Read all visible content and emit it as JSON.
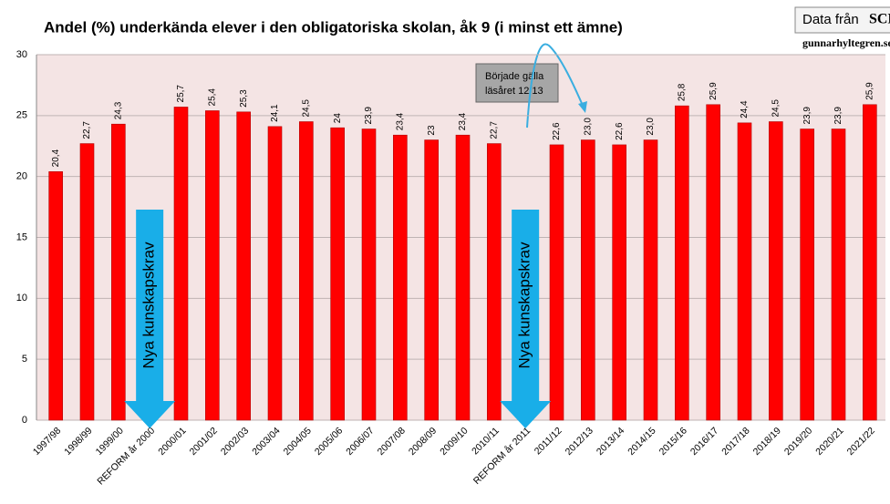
{
  "chart_data": {
    "type": "bar",
    "title": "Andel (%) underkända elever i den obligatoriska skolan, åk 9 (i minst ett ämne)",
    "categories": [
      "1997/98",
      "1998/99",
      "1999/00",
      "REFORM år 2000",
      "2000/01",
      "2001/02",
      "2002/03",
      "2003/04",
      "2004/05",
      "2005/06",
      "2006/07",
      "2007/08",
      "2008/09",
      "2009/10",
      "2010/11",
      "REFORM år 2011",
      "2011/12",
      "2012/13",
      "2013/14",
      "2014/15",
      "2015/16",
      "2016/17",
      "2017/18",
      "2018/19",
      "2019/20",
      "2020/21",
      "2021/22"
    ],
    "values": [
      20.4,
      22.7,
      24.3,
      null,
      25.7,
      25.4,
      25.3,
      24.1,
      24.5,
      24,
      23.9,
      23.4,
      23,
      23.4,
      22.7,
      null,
      22.6,
      23.0,
      22.6,
      23.0,
      25.8,
      25.9,
      24.4,
      24.5,
      23.9,
      23.9,
      25.9
    ],
    "value_labels": [
      "20,4",
      "22,7",
      "24,3",
      null,
      "25,7",
      "25,4",
      "25,3",
      "24,1",
      "24,5",
      "24",
      "23,9",
      "23,4",
      "23",
      "23,4",
      "22,7",
      null,
      "22,6",
      "23,0",
      "22,6",
      "23,0",
      "25,8",
      "25,9",
      "24,4",
      "24,5",
      "23,9",
      "23,9",
      "25,9"
    ],
    "color": "#ff0000",
    "ylim": [
      0,
      30
    ],
    "yticks": [
      0,
      5,
      10,
      15,
      20,
      25,
      30
    ],
    "grid": true,
    "annotations": {
      "reform_arrows": [
        {
          "text": "Nya kunskapskrav",
          "category": 3
        },
        {
          "text": "Nya kunskapskrav",
          "category": 15
        }
      ],
      "callout": [
        "Började gälla",
        "läsåret 12/13"
      ],
      "source": "Data från",
      "source_logo": "SCB",
      "website": "gunnarhyltegren.se"
    }
  }
}
